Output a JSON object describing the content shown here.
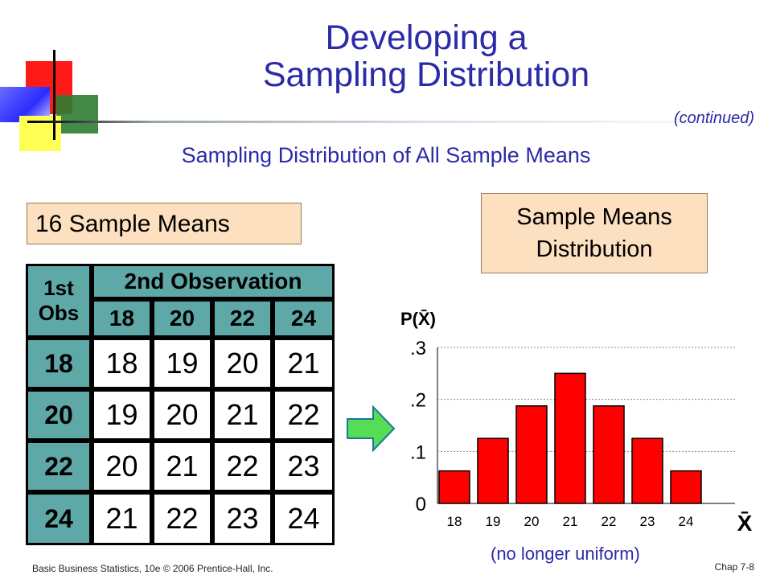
{
  "slide": {
    "title_line1": "Developing a",
    "title_line2": "Sampling Distribution",
    "continued": "(continued)",
    "subtitle": "Sampling Distribution of All Sample Means",
    "left_box": "16 Sample Means",
    "right_box_line1": "Sample Means",
    "right_box_line2": "Distribution",
    "note": "(no longer uniform)",
    "footer_left": "Basic Business Statistics, 10e © 2006 Prentice-Hall, Inc.",
    "footer_right": "Chap 7-8"
  },
  "table": {
    "corner_top": "1st",
    "corner_bottom": "Obs",
    "header": "2nd Observation",
    "columns": [
      "18",
      "20",
      "22",
      "24"
    ],
    "rows": [
      {
        "label": "18",
        "values": [
          "18",
          "19",
          "20",
          "21"
        ]
      },
      {
        "label": "20",
        "values": [
          "19",
          "20",
          "21",
          "22"
        ]
      },
      {
        "label": "22",
        "values": [
          "20",
          "21",
          "22",
          "23"
        ]
      },
      {
        "label": "24",
        "values": [
          "21",
          "22",
          "23",
          "24"
        ]
      }
    ]
  },
  "colors": {
    "title": "#2b2ba8",
    "table_header": "#5fa8a8",
    "box_fill": "#fde0bf",
    "bar": "#ff0000",
    "arrow": "#55dd55"
  },
  "chart_data": {
    "type": "bar",
    "categories": [
      "18",
      "19",
      "20",
      "21",
      "22",
      "23",
      "24"
    ],
    "values": [
      0.0625,
      0.125,
      0.1875,
      0.25,
      0.1875,
      0.125,
      0.0625
    ],
    "ylabel": "P(X̄)",
    "xlabel": "X̄",
    "ylim": [
      0,
      0.3
    ],
    "yticks": [
      ".3",
      ".2",
      ".1",
      "0"
    ],
    "ytick_values": [
      0.3,
      0.2,
      0.1,
      0
    ],
    "grid": true
  }
}
